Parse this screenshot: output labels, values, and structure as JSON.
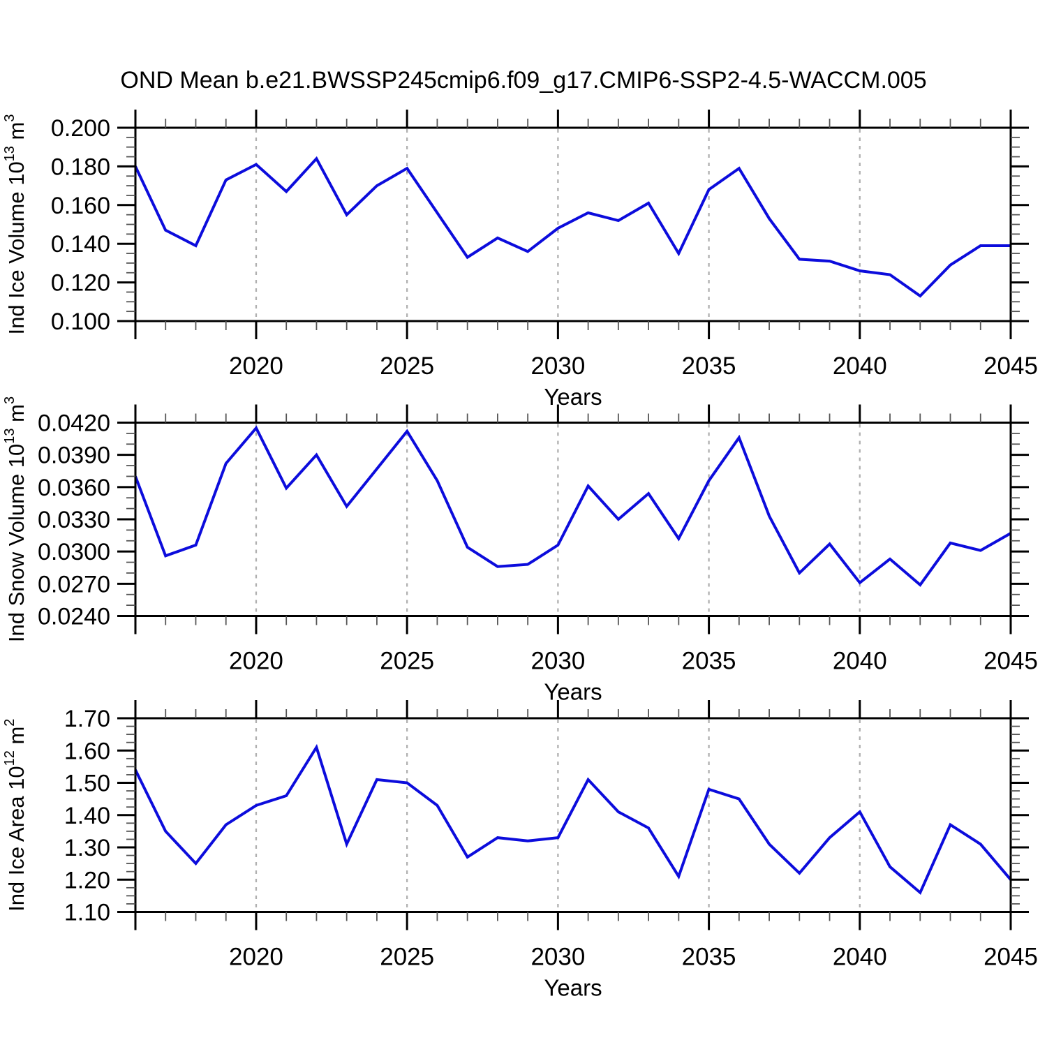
{
  "figure_title": "OND Mean b.e21.BWSSP245cmip6.f09_g17.CMIP6-SSP2-4.5-WACCM.005",
  "colors": {
    "line": "#0c0cdc",
    "frame": "#000000",
    "gridline": "#b0b0b0",
    "major_tick": "#000000",
    "minor_tick": "#555555",
    "text": "#000000",
    "background": "#ffffff"
  },
  "x_axis": {
    "label": "Years",
    "xlim": [
      2016,
      2045
    ],
    "major_ticks": [
      2020,
      2025,
      2030,
      2035,
      2040,
      2045
    ],
    "major_tick_labels": [
      "2020",
      "2025",
      "2030",
      "2035",
      "2040",
      "2045"
    ],
    "minor_step": 1,
    "gridlines": [
      2020,
      2025,
      2030,
      2035,
      2040
    ],
    "years": [
      2016,
      2017,
      2018,
      2019,
      2020,
      2021,
      2022,
      2023,
      2024,
      2025,
      2026,
      2027,
      2028,
      2029,
      2030,
      2031,
      2032,
      2033,
      2034,
      2035,
      2036,
      2037,
      2038,
      2039,
      2040,
      2041,
      2042,
      2043,
      2044,
      2045
    ]
  },
  "chart_data": [
    {
      "type": "line",
      "series_name": "Ind Ice Volume",
      "ylabel": "Ind Ice Volume 10^13 m^3",
      "ylabel_parts": [
        {
          "t": "Ind Ice Volume 10"
        },
        {
          "t": "13",
          "sup": true
        },
        {
          "t": " m"
        },
        {
          "t": "3",
          "sup": true
        }
      ],
      "xlabel": "Years",
      "ylim": [
        0.1,
        0.2
      ],
      "ytick_values": [
        0.1,
        0.12,
        0.14,
        0.16,
        0.18,
        0.2
      ],
      "ytick_labels": [
        "0.100",
        "0.120",
        "0.140",
        "0.160",
        "0.180",
        "0.200"
      ],
      "yminor_step": 0.005,
      "grid": "vertical-dashed",
      "legend": "none",
      "x": [
        2016,
        2017,
        2018,
        2019,
        2020,
        2021,
        2022,
        2023,
        2024,
        2025,
        2026,
        2027,
        2028,
        2029,
        2030,
        2031,
        2032,
        2033,
        2034,
        2035,
        2036,
        2037,
        2038,
        2039,
        2040,
        2041,
        2042,
        2043,
        2044,
        2045
      ],
      "values": [
        0.18,
        0.147,
        0.139,
        0.173,
        0.181,
        0.167,
        0.184,
        0.155,
        0.17,
        0.179,
        0.156,
        0.133,
        0.143,
        0.136,
        0.148,
        0.156,
        0.152,
        0.161,
        0.135,
        0.168,
        0.179,
        0.153,
        0.132,
        0.131,
        0.126,
        0.124,
        0.113,
        0.129,
        0.139,
        0.139
      ]
    },
    {
      "type": "line",
      "series_name": "Ind Snow Volume",
      "ylabel": "Ind Snow Volume 10^13 m^3",
      "ylabel_parts": [
        {
          "t": "Ind Snow Volume 10"
        },
        {
          "t": "13",
          "sup": true
        },
        {
          "t": " m"
        },
        {
          "t": "3",
          "sup": true
        }
      ],
      "xlabel": "Years",
      "ylim": [
        0.024,
        0.042
      ],
      "ytick_values": [
        0.024,
        0.027,
        0.03,
        0.033,
        0.036,
        0.039,
        0.042
      ],
      "ytick_labels": [
        "0.0240",
        "0.0270",
        "0.0300",
        "0.0330",
        "0.0360",
        "0.0390",
        "0.0420"
      ],
      "yminor_step": 0.001,
      "grid": "vertical-dashed",
      "legend": "none",
      "x": [
        2016,
        2017,
        2018,
        2019,
        2020,
        2021,
        2022,
        2023,
        2024,
        2025,
        2026,
        2027,
        2028,
        2029,
        2030,
        2031,
        2032,
        2033,
        2034,
        2035,
        2036,
        2037,
        2038,
        2039,
        2040,
        2041,
        2042,
        2043,
        2044,
        2045
      ],
      "values": [
        0.037,
        0.0296,
        0.0306,
        0.0382,
        0.0415,
        0.0359,
        0.039,
        0.0342,
        0.0377,
        0.0412,
        0.0366,
        0.0304,
        0.0286,
        0.0288,
        0.0306,
        0.0361,
        0.033,
        0.0354,
        0.0312,
        0.0366,
        0.0406,
        0.0333,
        0.028,
        0.0307,
        0.0271,
        0.0293,
        0.0269,
        0.0308,
        0.0301,
        0.0317
      ]
    },
    {
      "type": "line",
      "series_name": "Ind Ice Area",
      "ylabel": "Ind Ice Area 10^12 m^2",
      "ylabel_parts": [
        {
          "t": "Ind Ice Area 10"
        },
        {
          "t": "12",
          "sup": true
        },
        {
          "t": " m"
        },
        {
          "t": "2",
          "sup": true
        }
      ],
      "xlabel": "Years",
      "ylim": [
        1.1,
        1.7
      ],
      "ytick_values": [
        1.1,
        1.2,
        1.3,
        1.4,
        1.5,
        1.6,
        1.7
      ],
      "ytick_labels": [
        "1.10",
        "1.20",
        "1.30",
        "1.40",
        "1.50",
        "1.60",
        "1.70"
      ],
      "yminor_step": 0.025,
      "grid": "vertical-dashed",
      "legend": "none",
      "x": [
        2016,
        2017,
        2018,
        2019,
        2020,
        2021,
        2022,
        2023,
        2024,
        2025,
        2026,
        2027,
        2028,
        2029,
        2030,
        2031,
        2032,
        2033,
        2034,
        2035,
        2036,
        2037,
        2038,
        2039,
        2040,
        2041,
        2042,
        2043,
        2044,
        2045
      ],
      "values": [
        1.54,
        1.35,
        1.25,
        1.37,
        1.43,
        1.46,
        1.61,
        1.31,
        1.51,
        1.5,
        1.43,
        1.27,
        1.33,
        1.32,
        1.33,
        1.51,
        1.41,
        1.36,
        1.21,
        1.48,
        1.45,
        1.31,
        1.22,
        1.33,
        1.41,
        1.24,
        1.16,
        1.37,
        1.31,
        1.2
      ]
    }
  ]
}
